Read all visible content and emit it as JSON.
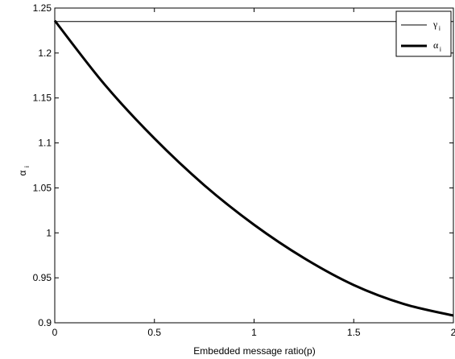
{
  "chart_data": {
    "type": "line",
    "xlabel": "Embedded message ratio(p)",
    "ylabel": "α",
    "ylabel_sub": "i",
    "xlim": [
      0,
      2
    ],
    "ylim": [
      0.9,
      1.25
    ],
    "xticks": [
      0,
      0.5,
      1,
      1.5,
      2
    ],
    "xtick_labels": [
      "0",
      "0.5",
      "1",
      "1.5",
      "2"
    ],
    "yticks": [
      0.9,
      0.95,
      1,
      1.05,
      1.1,
      1.15,
      1.2,
      1.25
    ],
    "ytick_labels": [
      "0.9",
      "0.95",
      "1",
      "1.05",
      "1.1",
      "1.15",
      "1.2",
      "1.25"
    ],
    "grid": false,
    "legend_position": "top-right",
    "series": [
      {
        "name": "γ",
        "name_sub": "i",
        "color": "#000000",
        "style": "thin",
        "x": [
          0,
          0.25,
          0.5,
          0.75,
          1,
          1.25,
          1.5,
          1.75,
          2
        ],
        "y": [
          1.235,
          1.235,
          1.235,
          1.235,
          1.235,
          1.235,
          1.235,
          1.235,
          1.235
        ]
      },
      {
        "name": "α",
        "name_sub": "i",
        "color": "#000000",
        "style": "thick",
        "x": [
          0,
          0.25,
          0.5,
          0.75,
          1,
          1.25,
          1.5,
          1.75,
          2
        ],
        "y": [
          1.236,
          1.165,
          1.105,
          1.053,
          1.009,
          0.972,
          0.942,
          0.921,
          0.908
        ]
      }
    ]
  }
}
